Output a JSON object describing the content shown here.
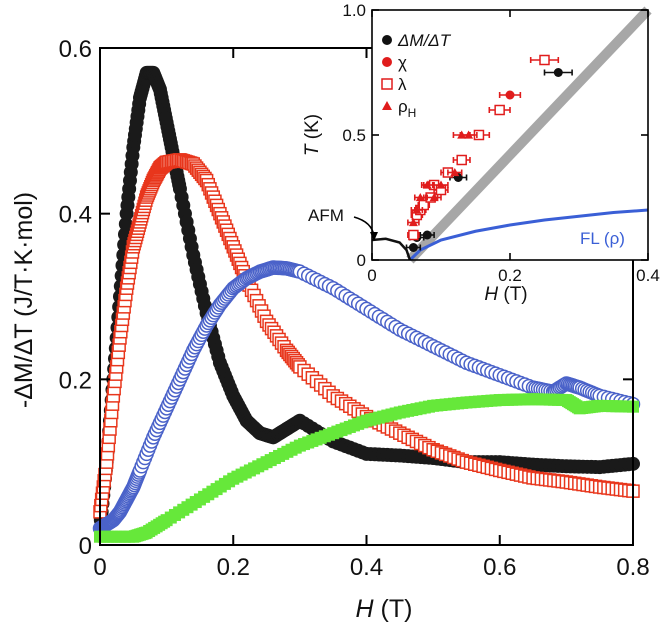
{
  "chart_data": [
    {
      "type": "scatter",
      "xlabel_sym": "H",
      "xlabel_unit": " (T)",
      "ylabel": "-ΔM/ΔT (J/T·K·mol)",
      "xlim": [
        0,
        0.8
      ],
      "ylim": [
        0,
        0.6
      ],
      "xticks": [
        "0",
        "0.2",
        "0.4",
        "0.6",
        "0.8"
      ],
      "yticks": [
        "0",
        "0.2",
        "0.4",
        "0.6"
      ],
      "grid": false,
      "series": [
        {
          "color": "#1a1a1a",
          "marker": "filled-circle",
          "x": [
            0.0,
            0.01,
            0.02,
            0.03,
            0.04,
            0.05,
            0.06,
            0.07,
            0.08,
            0.09,
            0.1,
            0.11,
            0.12,
            0.14,
            0.16,
            0.18,
            0.2,
            0.22,
            0.24,
            0.26,
            0.28,
            0.3,
            0.35,
            0.4,
            0.45,
            0.5,
            0.55,
            0.6,
            0.65,
            0.7,
            0.75,
            0.8
          ],
          "y": [
            0.02,
            0.1,
            0.2,
            0.3,
            0.4,
            0.48,
            0.54,
            0.57,
            0.57,
            0.55,
            0.51,
            0.47,
            0.43,
            0.35,
            0.28,
            0.22,
            0.18,
            0.15,
            0.135,
            0.13,
            0.14,
            0.15,
            0.125,
            0.11,
            0.108,
            0.105,
            0.1,
            0.1,
            0.097,
            0.095,
            0.094,
            0.098
          ]
        },
        {
          "color": "#e8361c",
          "marker": "open-square",
          "x": [
            0.0,
            0.01,
            0.02,
            0.03,
            0.04,
            0.05,
            0.06,
            0.07,
            0.08,
            0.09,
            0.1,
            0.12,
            0.14,
            0.16,
            0.18,
            0.2,
            0.22,
            0.25,
            0.28,
            0.3,
            0.35,
            0.4,
            0.45,
            0.5,
            0.55,
            0.6,
            0.65,
            0.7,
            0.75,
            0.8
          ],
          "y": [
            0.04,
            0.1,
            0.18,
            0.25,
            0.31,
            0.36,
            0.39,
            0.42,
            0.44,
            0.455,
            0.462,
            0.465,
            0.46,
            0.44,
            0.4,
            0.36,
            0.32,
            0.27,
            0.235,
            0.215,
            0.18,
            0.155,
            0.135,
            0.115,
            0.1,
            0.09,
            0.081,
            0.076,
            0.07,
            0.065
          ]
        },
        {
          "color": "#4a62c9",
          "marker": "open-circle",
          "x": [
            0.0,
            0.01,
            0.02,
            0.03,
            0.04,
            0.05,
            0.06,
            0.08,
            0.1,
            0.12,
            0.14,
            0.16,
            0.18,
            0.2,
            0.22,
            0.24,
            0.26,
            0.28,
            0.3,
            0.35,
            0.4,
            0.45,
            0.5,
            0.55,
            0.6,
            0.65,
            0.68,
            0.7,
            0.72,
            0.75,
            0.8
          ],
          "y": [
            0.02,
            0.025,
            0.03,
            0.04,
            0.055,
            0.07,
            0.09,
            0.13,
            0.165,
            0.2,
            0.235,
            0.265,
            0.29,
            0.31,
            0.322,
            0.33,
            0.335,
            0.334,
            0.33,
            0.31,
            0.285,
            0.26,
            0.24,
            0.22,
            0.205,
            0.19,
            0.185,
            0.195,
            0.19,
            0.18,
            0.17
          ]
        },
        {
          "color": "#66e83a",
          "marker": "filled-square",
          "x": [
            0.0,
            0.05,
            0.07,
            0.1,
            0.15,
            0.2,
            0.25,
            0.3,
            0.35,
            0.4,
            0.45,
            0.5,
            0.55,
            0.6,
            0.65,
            0.7,
            0.72,
            0.75,
            0.8
          ],
          "y": [
            0.01,
            0.01,
            0.015,
            0.03,
            0.055,
            0.08,
            0.1,
            0.12,
            0.135,
            0.15,
            0.16,
            0.168,
            0.172,
            0.175,
            0.176,
            0.175,
            0.165,
            0.168,
            0.167
          ]
        }
      ]
    },
    {
      "type": "scatter",
      "xlabel_sym": "H",
      "xlabel_unit": " (T)",
      "ylabel_sym": "T",
      "ylabel_unit": " (K)",
      "xlim": [
        0,
        0.4
      ],
      "ylim": [
        0,
        1.0
      ],
      "xticks": [
        "0",
        "0.2",
        "0.4"
      ],
      "yticks": [
        "0",
        "0.5",
        "1.0"
      ],
      "annotations": [
        "AFM",
        "FL (ρ)"
      ],
      "legend": [
        {
          "label": "ΔM/ΔT",
          "color": "#111111",
          "marker": "filled-circle"
        },
        {
          "label": "χ",
          "color": "#e01c1c",
          "marker": "filled-circle"
        },
        {
          "label": "λ",
          "color": "#e01c1c",
          "marker": "open-square"
        },
        {
          "label": "ρH",
          "color": "#e01c1c",
          "marker": "filled-triangle"
        }
      ],
      "gray_line": {
        "x": [
          0.055,
          0.4
        ],
        "y": [
          0.0,
          1.0
        ]
      },
      "fl_curve": {
        "x": [
          0.055,
          0.07,
          0.1,
          0.15,
          0.2,
          0.25,
          0.3,
          0.35,
          0.4
        ],
        "y": [
          0.0,
          0.04,
          0.08,
          0.115,
          0.14,
          0.16,
          0.175,
          0.19,
          0.2
        ]
      },
      "afm_curve": {
        "x": [
          0.0,
          0.02,
          0.04,
          0.05,
          0.055
        ],
        "y": [
          0.08,
          0.085,
          0.07,
          0.04,
          0.0
        ]
      },
      "series": [
        {
          "name": "ΔM/ΔT",
          "color": "#111111",
          "marker": "filled-circle",
          "x": [
            0.06,
            0.065,
            0.08,
            0.125,
            0.27
          ],
          "y": [
            0.05,
            0.09,
            0.1,
            0.33,
            0.75
          ],
          "xerr": [
            0.01,
            0.01,
            0.01,
            0.012,
            0.02
          ]
        },
        {
          "name": "χ",
          "color": "#e01c1c",
          "marker": "filled-circle",
          "x": [
            0.085,
            0.2
          ],
          "y": [
            0.3,
            0.66
          ],
          "xerr": [
            0.01,
            0.015
          ]
        },
        {
          "name": "λ",
          "color": "#e01c1c",
          "marker": "open-square",
          "x": [
            0.06,
            0.065,
            0.07,
            0.075,
            0.085,
            0.09,
            0.1,
            0.11,
            0.13,
            0.155,
            0.185,
            0.25
          ],
          "y": [
            0.1,
            0.18,
            0.2,
            0.22,
            0.25,
            0.3,
            0.28,
            0.35,
            0.4,
            0.5,
            0.6,
            0.8
          ],
          "xerr": [
            0.008,
            0.008,
            0.008,
            0.008,
            0.01,
            0.01,
            0.01,
            0.01,
            0.012,
            0.015,
            0.015,
            0.02
          ]
        },
        {
          "name": "ρH",
          "color": "#e01c1c",
          "marker": "filled-triangle",
          "x": [
            0.06,
            0.065,
            0.07,
            0.08,
            0.09,
            0.1,
            0.12,
            0.13,
            0.14
          ],
          "y": [
            0.15,
            0.2,
            0.25,
            0.3,
            0.25,
            0.3,
            0.35,
            0.5,
            0.5
          ],
          "xerr": [
            0.008,
            0.008,
            0.008,
            0.008,
            0.01,
            0.01,
            0.01,
            0.012,
            0.012
          ]
        }
      ]
    }
  ]
}
